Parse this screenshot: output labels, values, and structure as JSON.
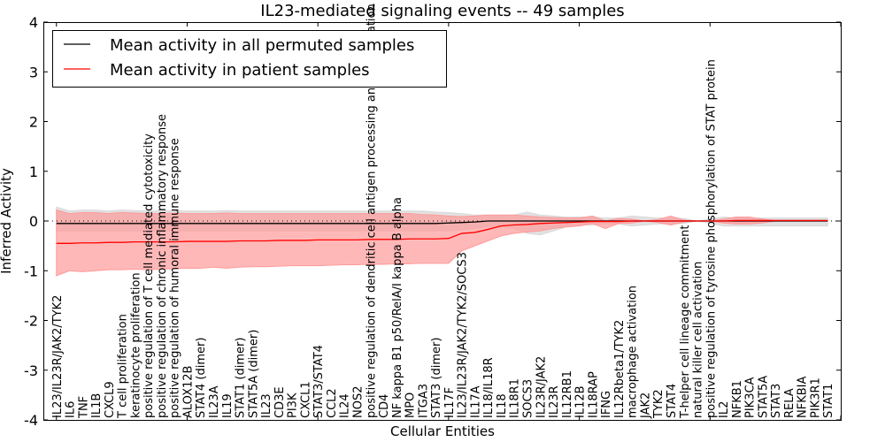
{
  "chart_data": {
    "type": "line",
    "title": "IL23-mediated signaling events -- 49 samples",
    "xlabel": "Cellular Entities",
    "ylabel": "Inferred Activity",
    "ylim": [
      -4,
      4
    ],
    "xlim": [
      -1,
      60
    ],
    "yticks": [
      -4,
      -3,
      -2,
      -1,
      0,
      1,
      2,
      3,
      4
    ],
    "legend_position": "top-left",
    "categories": [
      "IL23/IL23R/JAK2/TYK2",
      "IL6",
      "TNF",
      "IL1B",
      "CXCL9",
      "T cell proliferation",
      "keratinocyte proliferation",
      "positive regulation of T cell mediated cytotoxicity",
      "positive regulation of chronic inflammatory response",
      "positive regulation of humoral immune response",
      "ALOX12B",
      "STAT4 (dimer)",
      "IL23A",
      "IL19",
      "STAT1 (dimer)",
      "STAT5A (dimer)",
      "IL23",
      "CD3E",
      "PI3K",
      "CXCL1",
      "STAT3/STAT4",
      "CCL2",
      "IL24",
      "NOS2",
      "positive regulation of dendritic cell antigen processing and presentation",
      "CD4",
      "NF kappa B1 p50/RelA/I kappa B alpha",
      "MPO",
      "ITGA3",
      "STAT3 (dimer)",
      "IL17F",
      "IL23/IL23R/JAK2/TYK2/SOCS3",
      "IL17A",
      "IL18/IL18R",
      "IL18",
      "IL18R1",
      "SOCS3",
      "IL23R/JAK2",
      "IL23R",
      "IL12RB1",
      "IL12B",
      "IL18RAP",
      "IFNG",
      "IL12Rbeta1/TYK2",
      "macrophage activation",
      "JAK2",
      "TYK2",
      "STAT4",
      "T-helper cell lineage commitment",
      "natural killer cell activation",
      "positive regulation of tyrosine phosphorylation of STAT protein",
      "IL2",
      "NFKB1",
      "PIK3CA",
      "STAT5A",
      "STAT3",
      "RELA",
      "NFKBIA",
      "PIK3R1",
      "STAT1"
    ],
    "series": [
      {
        "name": "Mean activity in all permuted samples",
        "color": "#000000",
        "values": [
          -0.05,
          -0.05,
          -0.05,
          -0.05,
          -0.05,
          -0.05,
          -0.05,
          -0.05,
          -0.05,
          -0.05,
          -0.05,
          -0.05,
          -0.05,
          -0.05,
          -0.05,
          -0.05,
          -0.05,
          -0.05,
          -0.05,
          -0.05,
          -0.05,
          -0.05,
          -0.05,
          -0.05,
          -0.05,
          -0.05,
          -0.05,
          -0.05,
          -0.05,
          -0.05,
          -0.04,
          -0.03,
          -0.02,
          0.0,
          0.0,
          0.0,
          0.0,
          0.0,
          0.0,
          0.0,
          0.0,
          0.0,
          0.0,
          0.0,
          0.0,
          0.0,
          0.0,
          0.0,
          0.0,
          0.0,
          0.0,
          0.0,
          0.0,
          0.0,
          0.0,
          0.0,
          0.0,
          0.0,
          0.0,
          0.0
        ],
        "band_upper": [
          0.28,
          0.2,
          0.22,
          0.22,
          0.2,
          0.22,
          0.21,
          0.2,
          0.2,
          0.21,
          0.2,
          0.2,
          0.2,
          0.21,
          0.2,
          0.2,
          0.2,
          0.2,
          0.2,
          0.2,
          0.2,
          0.2,
          0.2,
          0.2,
          0.2,
          0.2,
          0.2,
          0.2,
          0.2,
          0.18,
          0.17,
          0.15,
          0.12,
          0.12,
          0.12,
          0.12,
          0.18,
          0.12,
          0.1,
          0.08,
          0.08,
          0.08,
          0.06,
          0.06,
          0.1,
          0.08,
          0.06,
          0.06,
          0.05,
          0.0,
          0.04,
          0.08,
          0.06,
          0.06,
          0.06,
          0.06,
          0.06,
          0.06,
          0.06,
          0.06
        ],
        "band_lower": [
          -0.2,
          -0.2,
          -0.2,
          -0.2,
          -0.2,
          -0.2,
          -0.2,
          -0.2,
          -0.2,
          -0.2,
          -0.2,
          -0.2,
          -0.2,
          -0.2,
          -0.2,
          -0.2,
          -0.2,
          -0.2,
          -0.2,
          -0.2,
          -0.2,
          -0.2,
          -0.2,
          -0.2,
          -0.2,
          -0.2,
          -0.2,
          -0.2,
          -0.2,
          -0.2,
          -0.2,
          -0.18,
          -0.15,
          -0.12,
          -0.12,
          -0.15,
          -0.25,
          -0.28,
          -0.2,
          -0.12,
          -0.08,
          -0.08,
          -0.06,
          -0.06,
          -0.1,
          -0.08,
          -0.06,
          -0.06,
          -0.05,
          0.0,
          -0.04,
          -0.1,
          -0.1,
          -0.1,
          -0.1,
          -0.1,
          -0.1,
          -0.1,
          -0.1,
          -0.1
        ]
      },
      {
        "name": "Mean activity in patient samples",
        "color": "#ff0000",
        "values": [
          -0.45,
          -0.45,
          -0.44,
          -0.44,
          -0.43,
          -0.43,
          -0.42,
          -0.42,
          -0.42,
          -0.42,
          -0.41,
          -0.41,
          -0.41,
          -0.41,
          -0.4,
          -0.4,
          -0.4,
          -0.39,
          -0.39,
          -0.39,
          -0.38,
          -0.38,
          -0.38,
          -0.38,
          -0.37,
          -0.37,
          -0.37,
          -0.36,
          -0.36,
          -0.36,
          -0.35,
          -0.25,
          -0.23,
          -0.17,
          -0.1,
          -0.08,
          -0.07,
          -0.05,
          -0.04,
          -0.03,
          -0.02,
          -0.01,
          -0.01,
          -0.01,
          0.0,
          0.0,
          0.0,
          0.0,
          0.0,
          0.0,
          0.0,
          0.0,
          0.01,
          0.01,
          0.01,
          0.01,
          0.01,
          0.01,
          0.01,
          0.01
        ],
        "band_upper": [
          0.22,
          0.15,
          0.17,
          0.17,
          0.15,
          0.17,
          0.16,
          0.15,
          0.15,
          0.16,
          0.15,
          0.15,
          0.15,
          0.16,
          0.15,
          0.15,
          0.15,
          0.15,
          0.15,
          0.15,
          0.15,
          0.15,
          0.15,
          0.15,
          0.15,
          0.15,
          0.15,
          0.15,
          0.13,
          0.12,
          0.1,
          0.09,
          0.1,
          0.12,
          0.12,
          0.12,
          0.1,
          0.08,
          0.07,
          0.06,
          0.06,
          0.1,
          0.0,
          0.05,
          0.04,
          0.0,
          0.03,
          0.1,
          0.02,
          0.0,
          0.0,
          0.04,
          0.08,
          0.08,
          0.04,
          0.01,
          0.01,
          0.01,
          0.01,
          0.01
        ],
        "band_lower": [
          -1.1,
          -1.0,
          -1.02,
          -1.0,
          -0.98,
          -0.98,
          -0.97,
          -0.98,
          -0.97,
          -0.96,
          -0.95,
          -0.95,
          -0.93,
          -0.95,
          -0.93,
          -0.92,
          -0.92,
          -0.91,
          -0.9,
          -0.9,
          -0.9,
          -0.89,
          -0.88,
          -0.88,
          -0.87,
          -0.87,
          -0.86,
          -0.86,
          -0.85,
          -0.85,
          -0.85,
          -0.6,
          -0.5,
          -0.4,
          -0.3,
          -0.25,
          -0.22,
          -0.2,
          -0.15,
          -0.12,
          -0.1,
          -0.05,
          -0.15,
          -0.05,
          -0.04,
          0.0,
          -0.03,
          -0.08,
          -0.02,
          0.0,
          0.0,
          -0.04,
          -0.06,
          -0.06,
          -0.04,
          0.0,
          0.0,
          0.0,
          0.0,
          0.0
        ]
      }
    ],
    "band_colors": {
      "permuted": "#d9d9d9",
      "patient": "#ff9a9a"
    }
  }
}
